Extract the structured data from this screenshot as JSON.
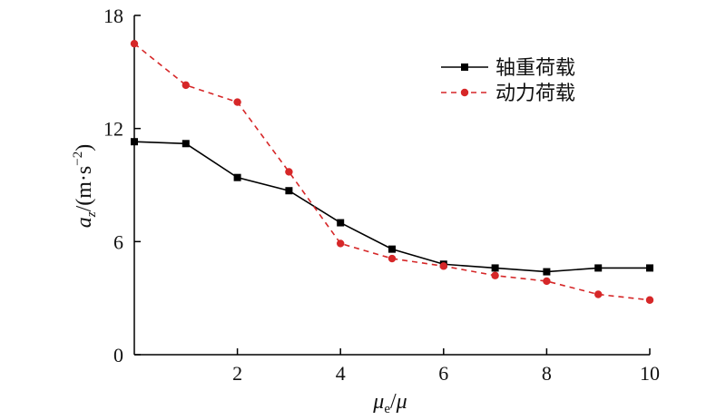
{
  "chart_data": {
    "type": "line",
    "x": [
      0,
      1,
      2,
      3,
      4,
      5,
      6,
      7,
      8,
      9,
      10
    ],
    "series": [
      {
        "name": "轴重荷载",
        "values": [
          11.3,
          11.2,
          9.4,
          8.7,
          7.0,
          5.6,
          4.8,
          4.6,
          4.4,
          4.6,
          4.6
        ],
        "color": "#000000",
        "line_style": "solid",
        "marker": "square"
      },
      {
        "name": "动力荷载",
        "values": [
          16.5,
          14.3,
          13.4,
          9.7,
          5.9,
          5.1,
          4.7,
          4.2,
          3.9,
          3.2,
          2.9
        ],
        "color": "#d62728",
        "line_style": "dashed",
        "marker": "circle"
      }
    ],
    "xlim": [
      0,
      10
    ],
    "ylim": [
      0,
      18
    ],
    "xticks": [
      "2",
      "4",
      "6",
      "8",
      "10"
    ],
    "yticks": [
      "0",
      "6",
      "12",
      "18"
    ],
    "xlabel": "μe/μ",
    "ylabel": "az/(m·s−2)",
    "legend_position": "top-right",
    "grid": false
  }
}
